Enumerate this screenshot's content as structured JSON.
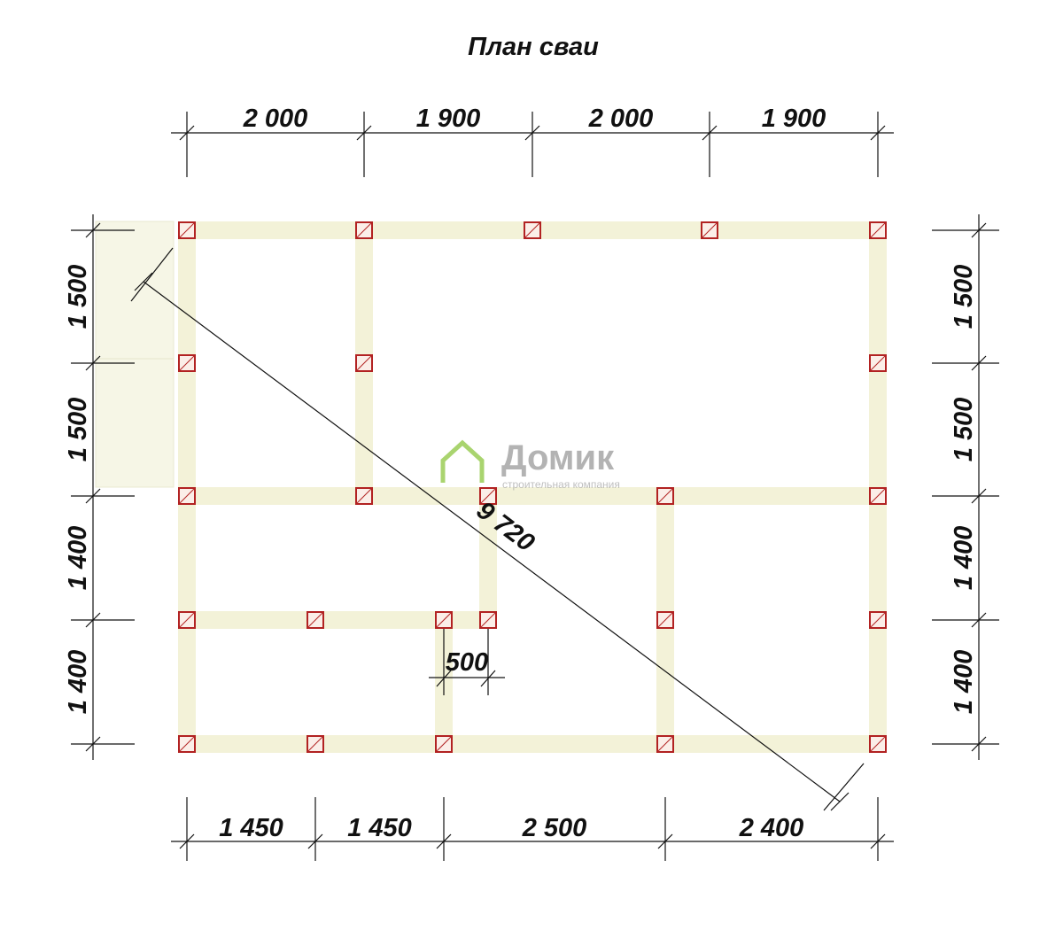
{
  "title": "План сваи",
  "top_dimensions": [
    "2 000",
    "1 900",
    "2 000",
    "1 900"
  ],
  "bottom_dimensions": [
    "1 450",
    "1 450",
    "2 500",
    "2 400"
  ],
  "left_dimensions": [
    "1 500",
    "1 500",
    "1 400",
    "1 400"
  ],
  "right_dimensions": [
    "1 500",
    "1 500",
    "1 400",
    "1 400"
  ],
  "diagonal_dimension": "9 720",
  "inner_dimension": "500",
  "logo": {
    "name": "Домик",
    "tagline": "строительная компания"
  }
}
